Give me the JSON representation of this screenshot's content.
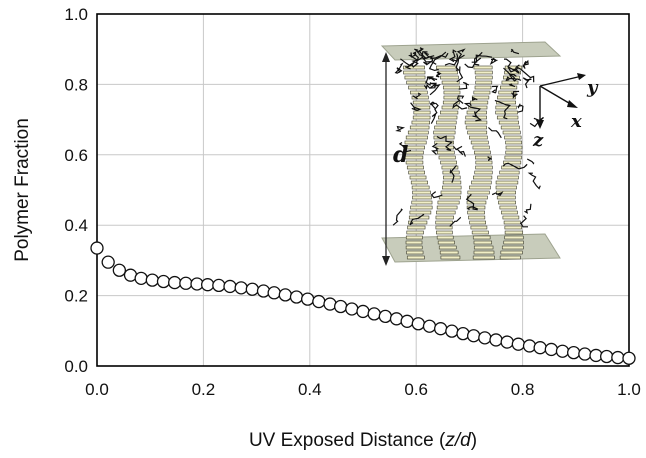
{
  "chart_data": {
    "type": "scatter",
    "xlabel_main": "UV Exposed Distance (",
    "xlabel_var": "z/d",
    "xlabel_close": ")",
    "ylabel": "Polymer Fraction",
    "xlim": [
      0.0,
      1.0
    ],
    "ylim": [
      0.0,
      1.0
    ],
    "x_ticks": [
      "0.0",
      "0.2",
      "0.4",
      "0.6",
      "0.8",
      "1.0"
    ],
    "y_ticks": [
      "0.0",
      "0.2",
      "0.4",
      "0.6",
      "0.8",
      "1.0"
    ],
    "grid": true,
    "marker": "open-circle",
    "series": [
      {
        "x": [
          0.0,
          0.021,
          0.042,
          0.063,
          0.083,
          0.104,
          0.125,
          0.146,
          0.167,
          0.188,
          0.208,
          0.229,
          0.25,
          0.271,
          0.292,
          0.313,
          0.333,
          0.354,
          0.375,
          0.396,
          0.417,
          0.438,
          0.458,
          0.479,
          0.5,
          0.521,
          0.542,
          0.563,
          0.583,
          0.604,
          0.625,
          0.646,
          0.667,
          0.688,
          0.708,
          0.729,
          0.75,
          0.771,
          0.792,
          0.813,
          0.833,
          0.854,
          0.875,
          0.896,
          0.917,
          0.938,
          0.958,
          0.979,
          1.0
        ],
        "y": [
          0.335,
          0.295,
          0.272,
          0.258,
          0.249,
          0.244,
          0.24,
          0.237,
          0.235,
          0.233,
          0.231,
          0.229,
          0.226,
          0.222,
          0.218,
          0.213,
          0.208,
          0.202,
          0.196,
          0.19,
          0.183,
          0.176,
          0.169,
          0.162,
          0.155,
          0.148,
          0.141,
          0.134,
          0.127,
          0.12,
          0.113,
          0.106,
          0.099,
          0.092,
          0.086,
          0.08,
          0.074,
          0.068,
          0.062,
          0.057,
          0.052,
          0.047,
          0.042,
          0.038,
          0.034,
          0.03,
          0.027,
          0.024,
          0.022
        ]
      }
    ]
  },
  "inset": {
    "label_d": "d",
    "axis_y": "y",
    "axis_x": "x",
    "axis_z": "z",
    "colors": {
      "plate": "#c8ccbb",
      "plate_edge": "#9ea38f",
      "stripe_light": "#f1efc6",
      "stripe_dark": "#3a3a2c",
      "chain": "#101010"
    }
  }
}
